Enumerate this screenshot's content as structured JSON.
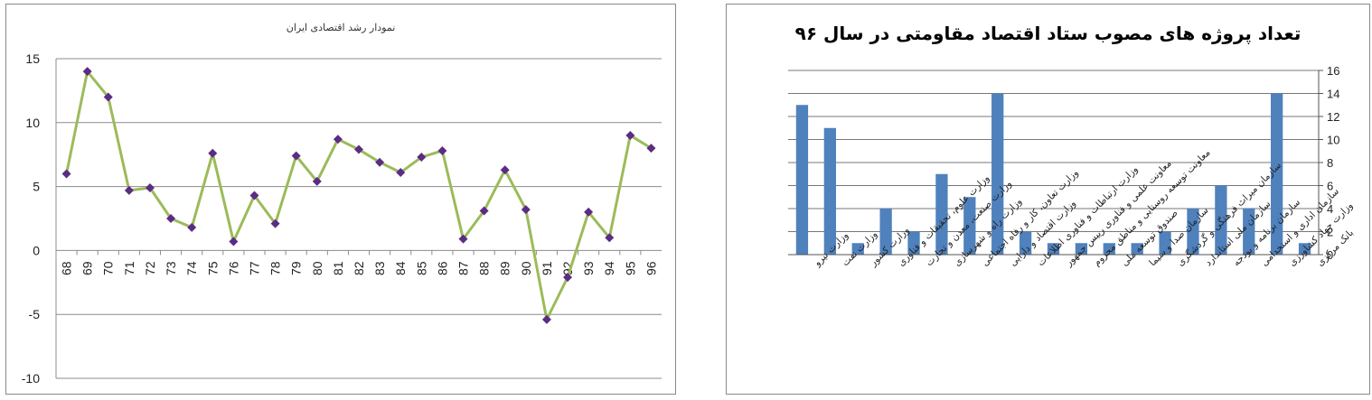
{
  "chart_data": [
    {
      "type": "line",
      "title": "نمودار رشد اقتصادی ایران",
      "xlabel": "",
      "ylabel": "",
      "categories": [
        "68",
        "69",
        "70",
        "71",
        "72",
        "73",
        "74",
        "75",
        "76",
        "77",
        "78",
        "79",
        "80",
        "81",
        "82",
        "83",
        "84",
        "85",
        "86",
        "87",
        "88",
        "89",
        "90",
        "91",
        "92",
        "93",
        "94",
        "95",
        "96"
      ],
      "series": [
        {
          "values": [
            6.0,
            14.0,
            12.0,
            4.7,
            4.9,
            2.5,
            1.8,
            7.6,
            0.7,
            4.3,
            2.1,
            7.4,
            5.4,
            8.7,
            7.9,
            6.9,
            6.1,
            7.3,
            7.8,
            0.9,
            3.1,
            6.3,
            3.2,
            -5.4,
            -2.1,
            3.0,
            1.0,
            9.0,
            8.0
          ]
        }
      ],
      "ylim": [
        -10,
        15
      ],
      "yticks": [
        -10,
        -5,
        0,
        5,
        10,
        15
      ],
      "grid": true,
      "line_color": "#9bbb59",
      "marker_color": "#5b2c83"
    },
    {
      "type": "bar",
      "title": "تعداد پروژه های مصوب ستاد اقتصاد مقاومتی در سال ۹۶",
      "xlabel": "",
      "ylabel": "",
      "categories": [
        "وزارت نیرو",
        "وزارت نفت",
        "وزارت کشور",
        "وزارت علوم، تحقیقات و فناوری",
        "وزارت صنعت، معدن و تجارت",
        "وزارت راه و شهرسازی",
        "وزارت تعاون، کار و رفاه اجتماعی",
        "وزارت اقتصاد و دارایی",
        "وزارت ارتباطات و فناوری اطلاعات",
        "معاونت علمی و فناوری رییس جمهور",
        "معاونت توسعه روستایی و مناطق محروم",
        "صندوق توسعه ملی",
        "سازمان صدا و سیما",
        "سازمان میراث فرهنگی و گردشگری",
        "سازمان ملی استاندارد",
        "سازمان برنامه و بودجه",
        "سازمان اداری و استخدامی",
        "وزارت جهاد کشاورزی",
        "بانک مرکزی"
      ],
      "values": [
        13,
        11,
        1,
        4,
        2,
        7,
        5,
        14,
        2,
        1,
        1,
        1,
        1,
        2,
        4,
        6,
        4,
        14,
        1
      ],
      "ylim": [
        0,
        16
      ],
      "yticks": [
        0,
        2,
        4,
        6,
        8,
        10,
        12,
        14,
        16
      ],
      "axis_side": "right",
      "grid": true,
      "bar_color": "#4f81bd"
    }
  ]
}
